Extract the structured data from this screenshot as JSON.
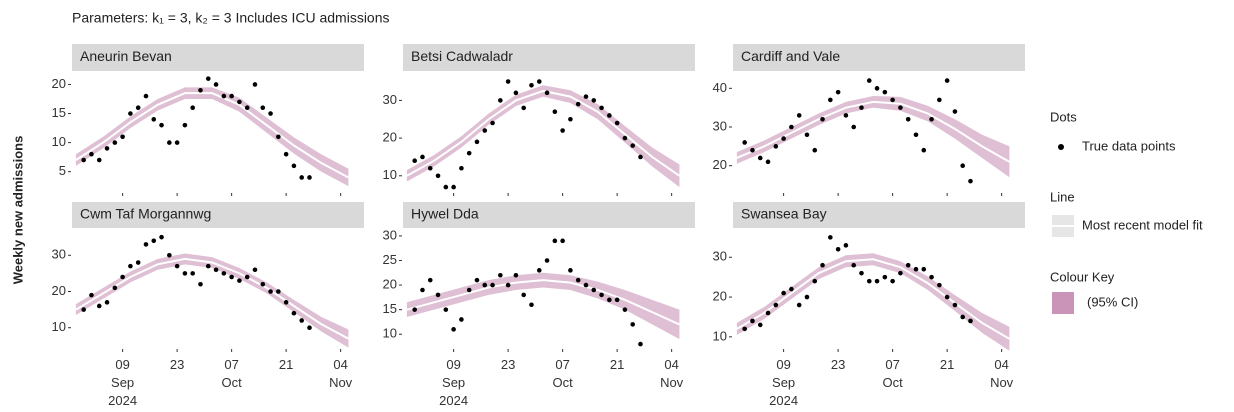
{
  "chart_data": {
    "type": "facet-scatter",
    "title": "Parameters: k₁ = 3, k₂ = 3 Includes ICU admissions",
    "y_label": "Weekly new admissions",
    "xlim": [
      "2024-08-27",
      "2024-11-10"
    ],
    "xticks": [
      {
        "value": "2024-09-09",
        "label": "09\nSep\n2024"
      },
      {
        "value": "2024-09-23",
        "label": "23"
      },
      {
        "value": "2024-10-07",
        "label": "07\nOct"
      },
      {
        "value": "2024-10-21",
        "label": "21"
      },
      {
        "value": "2024-11-04",
        "label": "04\nNov"
      }
    ],
    "x": [
      "2024-08-30",
      "2024-09-01",
      "2024-09-03",
      "2024-09-05",
      "2024-09-07",
      "2024-09-09",
      "2024-09-11",
      "2024-09-13",
      "2024-09-15",
      "2024-09-17",
      "2024-09-19",
      "2024-09-21",
      "2024-09-23",
      "2024-09-25",
      "2024-09-27",
      "2024-09-29",
      "2024-10-01",
      "2024-10-03",
      "2024-10-05",
      "2024-10-07",
      "2024-10-09",
      "2024-10-11",
      "2024-10-13",
      "2024-10-15",
      "2024-10-17",
      "2024-10-19",
      "2024-10-21",
      "2024-10-23",
      "2024-10-25",
      "2024-10-27"
    ],
    "fit_x": [
      "2024-08-28",
      "2024-09-04",
      "2024-09-11",
      "2024-09-18",
      "2024-09-25",
      "2024-10-02",
      "2024-10-09",
      "2024-10-16",
      "2024-10-23",
      "2024-10-30",
      "2024-11-06"
    ],
    "dot_color": "#000000",
    "fit_color": "#ffffff",
    "ci_color": "#c994b8",
    "strip_color": "#d9d9d9",
    "panels": [
      {
        "title": "Aneurin Bevan",
        "ylim": [
          1.5,
          21.8
        ],
        "yticks": [
          5,
          10,
          15,
          20
        ],
        "values": [
          7,
          8,
          7,
          9,
          10,
          11,
          15,
          16,
          18,
          14,
          13,
          10,
          10,
          13,
          16,
          19,
          21,
          20,
          18,
          18,
          17,
          16,
          20,
          16,
          15,
          11,
          8,
          6,
          4,
          4
        ],
        "fit": [
          7,
          10,
          13.5,
          16.5,
          18.5,
          18.5,
          16.5,
          13,
          9.5,
          6.5,
          4
        ],
        "lower": [
          6,
          9,
          12.5,
          15.5,
          17.5,
          17.5,
          15.3,
          11.7,
          8.1,
          5,
          2.5
        ],
        "upper": [
          8,
          11,
          14.5,
          17.5,
          19.5,
          19.5,
          17.7,
          14.3,
          10.9,
          8,
          5.5
        ]
      },
      {
        "title": "Betsi Cadwaladr",
        "ylim": [
          5.7,
          37
        ],
        "yticks": [
          10,
          20,
          30
        ],
        "values": [
          14,
          15,
          12,
          10,
          7,
          7,
          12,
          16,
          19,
          22,
          24,
          30,
          35,
          32,
          28,
          34,
          35,
          32,
          27,
          22,
          25,
          29,
          31,
          30,
          28,
          26,
          24,
          20,
          18,
          15
        ],
        "fit": [
          10,
          14,
          19,
          25,
          30,
          32.5,
          31,
          27,
          21,
          15,
          10
        ],
        "lower": [
          8.5,
          12.5,
          17.5,
          23.5,
          28.5,
          31,
          29.3,
          25,
          18.8,
          12.5,
          7
        ],
        "upper": [
          11.5,
          15.5,
          20.5,
          26.5,
          31.5,
          34,
          32.7,
          29,
          23.2,
          17.5,
          13
        ]
      },
      {
        "title": "Cardiff and Vale",
        "ylim": [
          13.2,
          43.7
        ],
        "yticks": [
          20,
          30,
          40
        ],
        "values": [
          26,
          24,
          22,
          21,
          25,
          27,
          30,
          33,
          28,
          24,
          32,
          37,
          39,
          33,
          30,
          35,
          42,
          40,
          39,
          37,
          35,
          32,
          28,
          24,
          32,
          37,
          42,
          34,
          20,
          16
        ],
        "fit": [
          22,
          25,
          28.5,
          32,
          35,
          36.5,
          36,
          33.5,
          29.5,
          25,
          21
        ],
        "lower": [
          20.5,
          23.5,
          27,
          30.5,
          33.5,
          35,
          34.2,
          31.5,
          27,
          22,
          17
        ],
        "upper": [
          23.5,
          26.5,
          30,
          33.5,
          36.5,
          38,
          37.8,
          35.5,
          32,
          28,
          25
        ]
      },
      {
        "title": "Cwm Taf Morgannwg",
        "ylim": [
          4.4,
          36.7
        ],
        "yticks": [
          10,
          20,
          30
        ],
        "values": [
          15,
          19,
          16,
          17,
          21,
          24,
          27,
          28,
          33,
          34,
          35,
          30,
          27,
          25,
          25,
          22,
          27,
          26,
          25,
          24,
          23,
          24,
          26,
          22,
          20,
          20,
          17,
          14,
          12,
          10
        ],
        "fit": [
          15,
          19.5,
          24,
          27.5,
          29,
          28,
          25,
          21,
          16,
          11,
          7
        ],
        "lower": [
          13.5,
          18,
          22.5,
          26,
          27.5,
          26.5,
          23.5,
          19.5,
          14.3,
          9,
          4.5
        ],
        "upper": [
          16.5,
          21,
          25.5,
          29,
          30.5,
          29.5,
          26.5,
          22.5,
          17.7,
          13,
          9.5
        ]
      },
      {
        "title": "Hywel Dda",
        "ylim": [
          7.2,
          31
        ],
        "yticks": [
          10,
          15,
          20,
          25,
          30
        ],
        "values": [
          15,
          19,
          21,
          18,
          15,
          11,
          13,
          19,
          21,
          20,
          20,
          22,
          20,
          22,
          18,
          16,
          23,
          25,
          29,
          29,
          23,
          21,
          20,
          19,
          18,
          17,
          17,
          15,
          12,
          8
        ],
        "fit": [
          15,
          16.5,
          18,
          19.5,
          20.5,
          21,
          20.5,
          19,
          17,
          14.5,
          12
        ],
        "lower": [
          13.5,
          15,
          16.5,
          18,
          19,
          19.5,
          19,
          17.3,
          15,
          12,
          9
        ],
        "upper": [
          16.5,
          18,
          19.5,
          21,
          22,
          22.5,
          22,
          20.7,
          19,
          17,
          15
        ]
      },
      {
        "title": "Swansea Bay",
        "ylim": [
          7.2,
          36.6
        ],
        "yticks": [
          10,
          20,
          30
        ],
        "values": [
          12,
          14,
          13,
          16,
          18,
          21,
          22,
          18,
          20,
          24,
          28,
          35,
          32,
          33,
          28,
          26,
          24,
          24,
          25,
          24,
          26,
          28,
          27,
          27,
          25,
          23,
          20,
          18,
          15,
          14
        ],
        "fit": [
          12,
          16,
          21,
          26,
          29,
          29.5,
          27.5,
          23.5,
          18.5,
          13.5,
          9.5
        ],
        "lower": [
          10.5,
          14.5,
          19.5,
          24.5,
          27.5,
          28,
          26,
          21.8,
          16.5,
          11,
          6.5
        ],
        "upper": [
          13.5,
          17.5,
          22.5,
          27.5,
          30.5,
          31,
          29,
          25.2,
          20.5,
          16,
          12.5
        ]
      }
    ],
    "legend": {
      "dots_title": "Dots",
      "dots_label": "True data points",
      "line_title": "Line",
      "line_label": "Most recent model fit",
      "ci_title": "Colour Key",
      "ci_label": "(95% CI)"
    }
  }
}
